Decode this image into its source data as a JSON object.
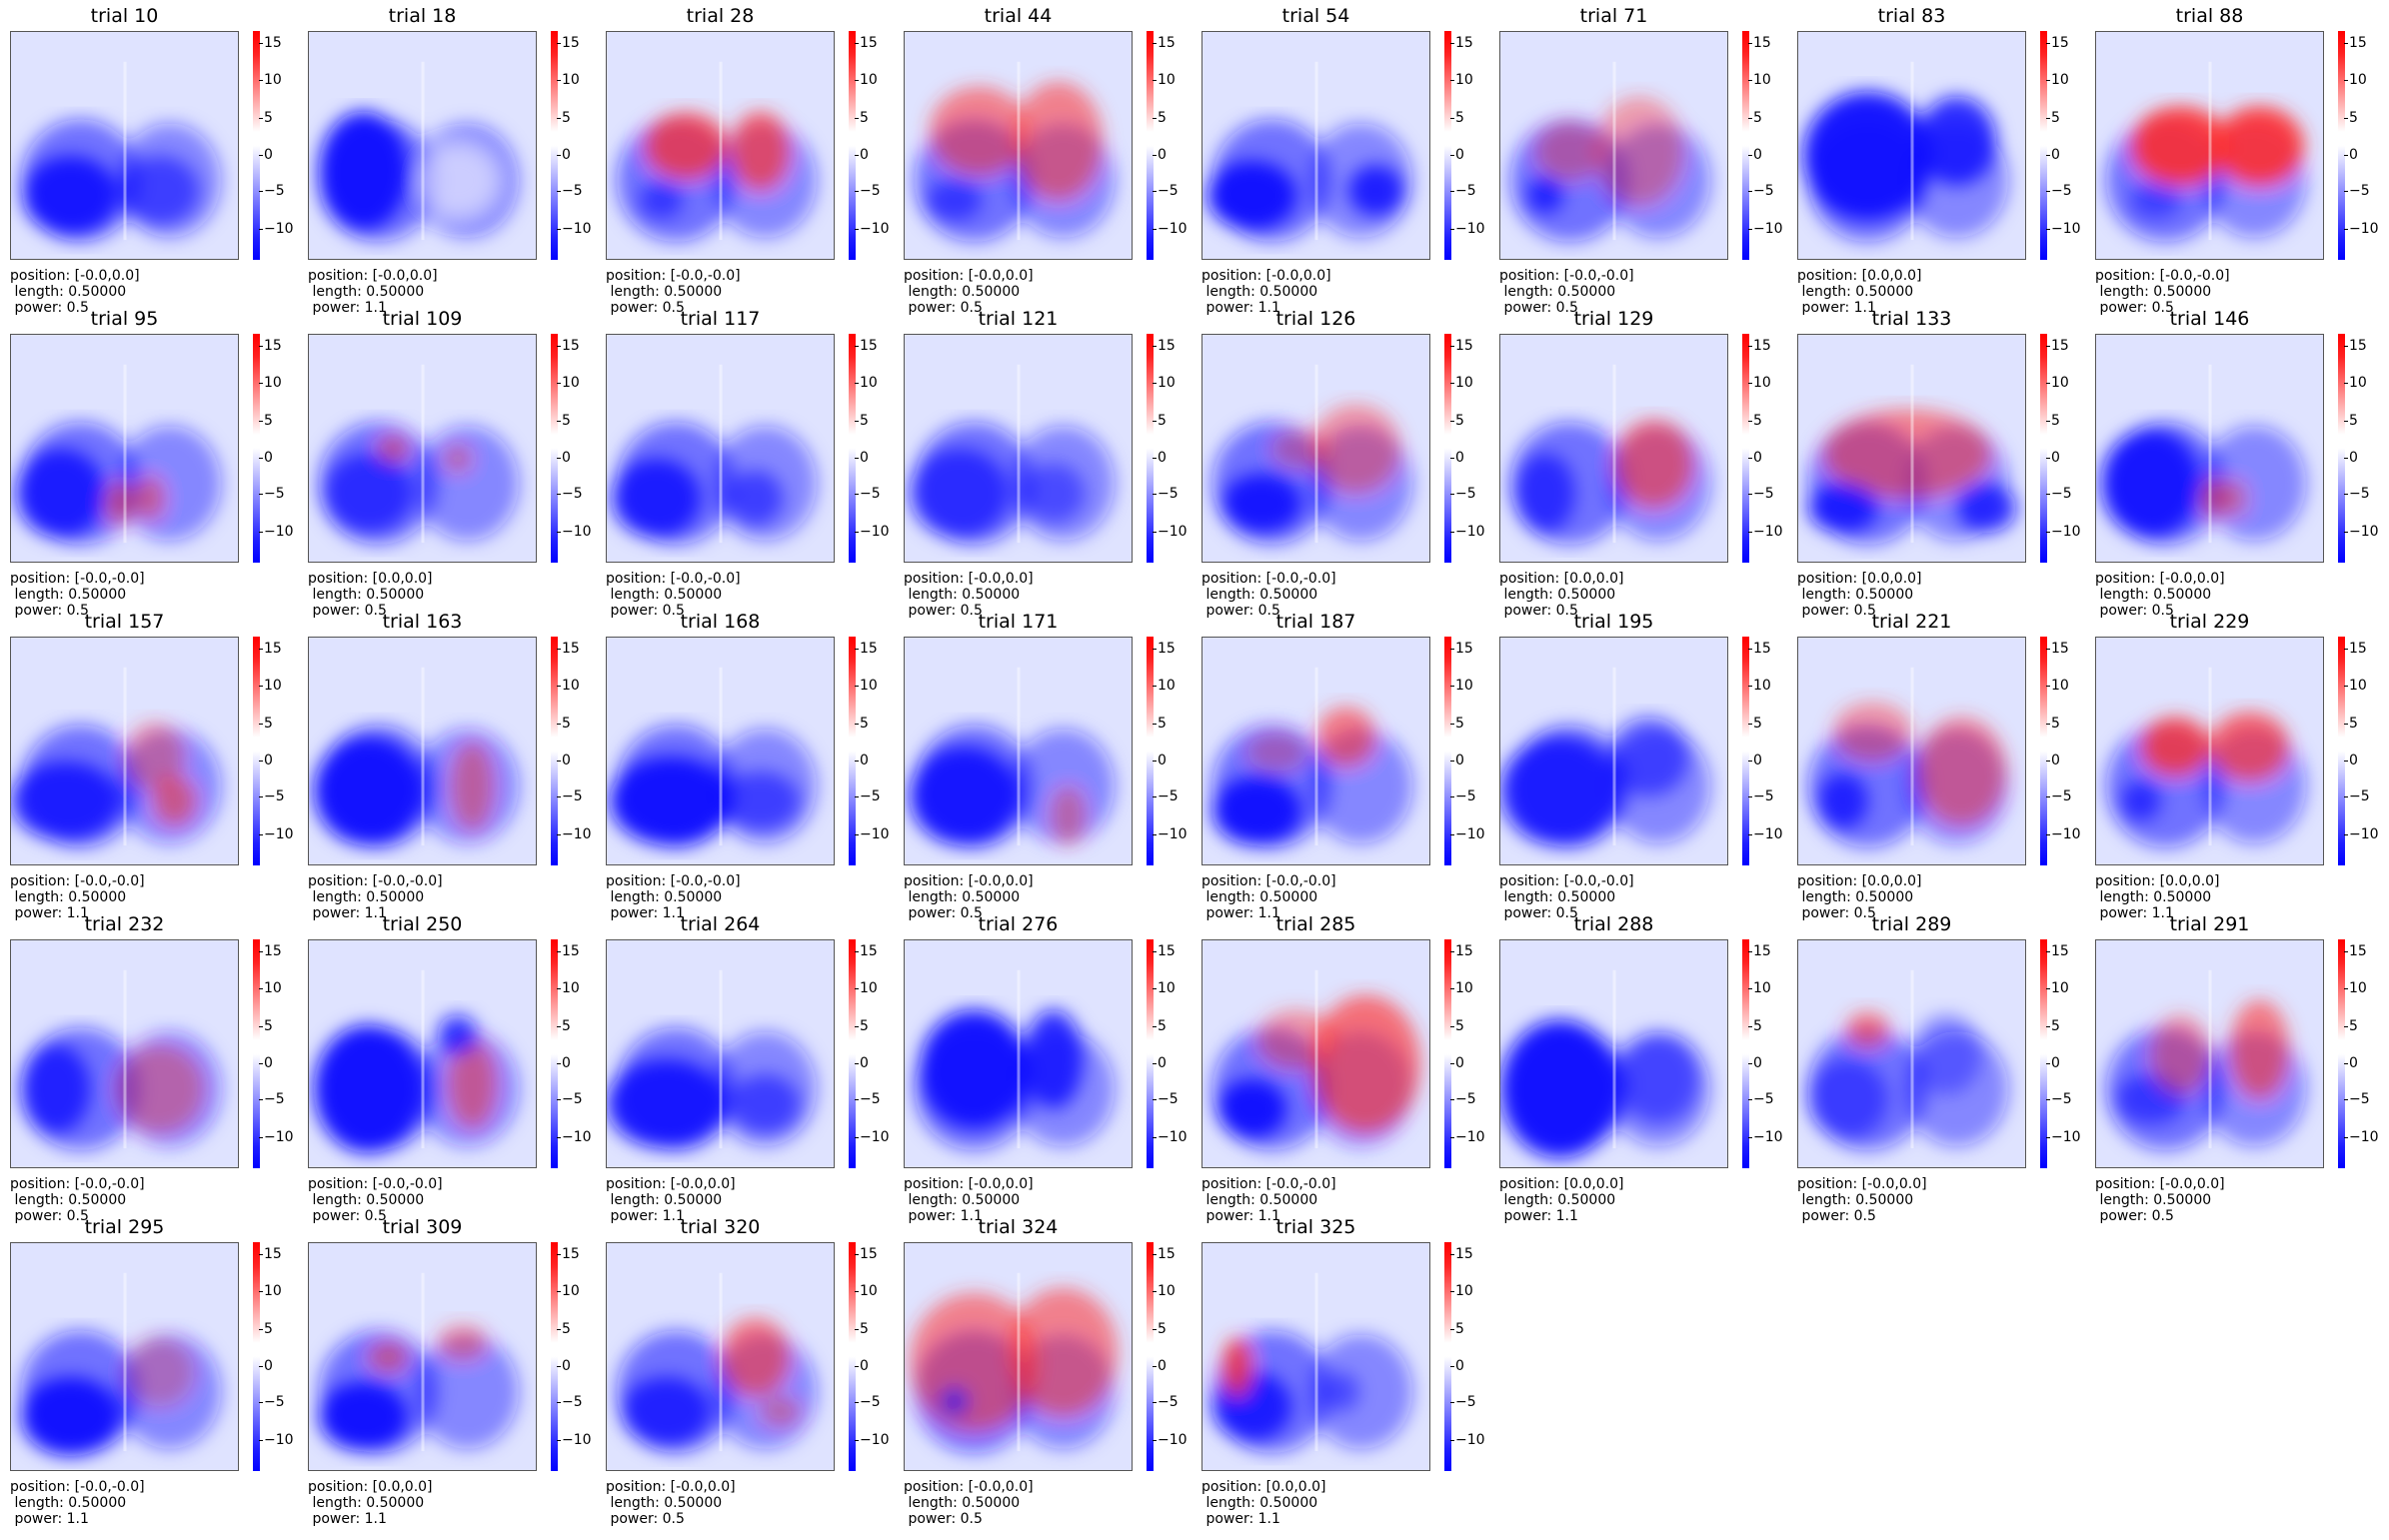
{
  "chart_data": {
    "type": "heatmap",
    "colormap": "bwr",
    "colorbar": {
      "ticks": [
        "15",
        "10",
        "5",
        "0",
        "−5",
        "−10"
      ],
      "range": [
        -13,
        17
      ]
    },
    "panels": [
      {
        "title": "trial 10",
        "info": [
          "position: [-0.0,0.0]",
          " length: 0.50000",
          " power: 0.5"
        ]
      },
      {
        "title": "trial 18",
        "info": [
          "position: [-0.0,0.0]",
          " length: 0.50000",
          " power: 1.1"
        ]
      },
      {
        "title": "trial 28",
        "info": [
          "position: [-0.0,-0.0]",
          " length: 0.50000",
          " power: 0.5"
        ]
      },
      {
        "title": "trial 44",
        "info": [
          "position: [-0.0,0.0]",
          " length: 0.50000",
          " power: 0.5"
        ]
      },
      {
        "title": "trial 54",
        "info": [
          "position: [-0.0,0.0]",
          " length: 0.50000",
          " power: 1.1"
        ]
      },
      {
        "title": "trial 71",
        "info": [
          "position: [-0.0,-0.0]",
          " length: 0.50000",
          " power: 0.5"
        ]
      },
      {
        "title": "trial 83",
        "info": [
          "position: [0.0,0.0]",
          " length: 0.50000",
          " power: 1.1"
        ]
      },
      {
        "title": "trial 88",
        "info": [
          "position: [-0.0,-0.0]",
          " length: 0.50000",
          " power: 0.5"
        ]
      },
      {
        "title": "trial 95",
        "info": [
          "position: [-0.0,-0.0]",
          " length: 0.50000",
          " power: 0.5"
        ]
      },
      {
        "title": "trial 109",
        "info": [
          "position: [0.0,0.0]",
          " length: 0.50000",
          " power: 0.5"
        ]
      },
      {
        "title": "trial 117",
        "info": [
          "position: [-0.0,-0.0]",
          " length: 0.50000",
          " power: 0.5"
        ]
      },
      {
        "title": "trial 121",
        "info": [
          "position: [-0.0,0.0]",
          " length: 0.50000",
          " power: 0.5"
        ]
      },
      {
        "title": "trial 126",
        "info": [
          "position: [-0.0,-0.0]",
          " length: 0.50000",
          " power: 0.5"
        ]
      },
      {
        "title": "trial 129",
        "info": [
          "position: [0.0,0.0]",
          " length: 0.50000",
          " power: 0.5"
        ]
      },
      {
        "title": "trial 133",
        "info": [
          "position: [0.0,0.0]",
          " length: 0.50000",
          " power: 0.5"
        ]
      },
      {
        "title": "trial 146",
        "info": [
          "position: [-0.0,0.0]",
          " length: 0.50000",
          " power: 0.5"
        ]
      },
      {
        "title": "trial 157",
        "info": [
          "position: [-0.0,-0.0]",
          " length: 0.50000",
          " power: 1.1"
        ]
      },
      {
        "title": "trial 163",
        "info": [
          "position: [-0.0,-0.0]",
          " length: 0.50000",
          " power: 1.1"
        ]
      },
      {
        "title": "trial 168",
        "info": [
          "position: [-0.0,-0.0]",
          " length: 0.50000",
          " power: 1.1"
        ]
      },
      {
        "title": "trial 171",
        "info": [
          "position: [-0.0,0.0]",
          " length: 0.50000",
          " power: 0.5"
        ]
      },
      {
        "title": "trial 187",
        "info": [
          "position: [-0.0,-0.0]",
          " length: 0.50000",
          " power: 1.1"
        ]
      },
      {
        "title": "trial 195",
        "info": [
          "position: [-0.0,-0.0]",
          " length: 0.50000",
          " power: 0.5"
        ]
      },
      {
        "title": "trial 221",
        "info": [
          "position: [0.0,0.0]",
          " length: 0.50000",
          " power: 0.5"
        ]
      },
      {
        "title": "trial 229",
        "info": [
          "position: [0.0,0.0]",
          " length: 0.50000",
          " power: 1.1"
        ]
      },
      {
        "title": "trial 232",
        "info": [
          "position: [-0.0,-0.0]",
          " length: 0.50000",
          " power: 0.5"
        ]
      },
      {
        "title": "trial 250",
        "info": [
          "position: [-0.0,-0.0]",
          " length: 0.50000",
          " power: 0.5"
        ]
      },
      {
        "title": "trial 264",
        "info": [
          "position: [-0.0,0.0]",
          " length: 0.50000",
          " power: 1.1"
        ]
      },
      {
        "title": "trial 276",
        "info": [
          "position: [-0.0,0.0]",
          " length: 0.50000",
          " power: 1.1"
        ]
      },
      {
        "title": "trial 285",
        "info": [
          "position: [-0.0,-0.0]",
          " length: 0.50000",
          " power: 1.1"
        ]
      },
      {
        "title": "trial 288",
        "info": [
          "position: [0.0,0.0]",
          " length: 0.50000",
          " power: 1.1"
        ]
      },
      {
        "title": "trial 289",
        "info": [
          "position: [-0.0,0.0]",
          " length: 0.50000",
          " power: 0.5"
        ]
      },
      {
        "title": "trial 291",
        "info": [
          "position: [-0.0,0.0]",
          " length: 0.50000",
          " power: 0.5"
        ]
      },
      {
        "title": "trial 295",
        "info": [
          "position: [-0.0,-0.0]",
          " length: 0.50000",
          " power: 1.1"
        ]
      },
      {
        "title": "trial 309",
        "info": [
          "position: [0.0,0.0]",
          " length: 0.50000",
          " power: 1.1"
        ]
      },
      {
        "title": "trial 320",
        "info": [
          "position: [-0.0,0.0]",
          " length: 0.50000",
          " power: 0.5"
        ]
      },
      {
        "title": "trial 324",
        "info": [
          "position: [-0.0,0.0]",
          " length: 0.50000",
          " power: 0.5"
        ]
      },
      {
        "title": "trial 325",
        "info": [
          "position: [0.0,0.0]",
          " length: 0.50000",
          " power: 1.1"
        ]
      }
    ]
  }
}
